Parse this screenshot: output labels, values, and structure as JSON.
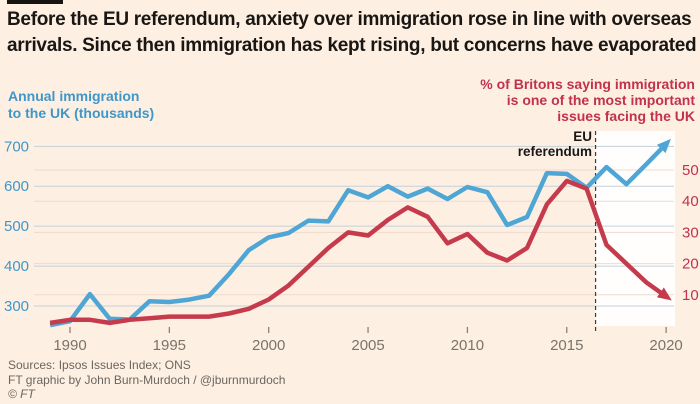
{
  "header": {
    "title_line1": "Before the EU referendum, anxiety over immigration rose in line with overseas",
    "title_line2": "arrivals. Since then immigration has kept rising, but concerns have evaporated"
  },
  "chart_data": {
    "type": "line",
    "x": [
      1989,
      1990,
      1991,
      1992,
      1993,
      1994,
      1995,
      1996,
      1997,
      1998,
      1999,
      2000,
      2001,
      2002,
      2003,
      2004,
      2005,
      2006,
      2007,
      2008,
      2009,
      2010,
      2011,
      2012,
      2013,
      2014,
      2015,
      2016,
      2017,
      2018,
      2019,
      2020
    ],
    "series": [
      {
        "name": "annual-immigration-thousands",
        "axis": "left",
        "color": "#4FA6D4",
        "values": [
          252,
          262,
          330,
          268,
          266,
          312,
          310,
          316,
          326,
          380,
          440,
          472,
          483,
          514,
          512,
          590,
          572,
          600,
          574,
          594,
          568,
          598,
          585,
          503,
          523,
          633,
          631,
          596,
          648,
          605,
          655,
          706
        ]
      },
      {
        "name": "pct-saying-immigration-important-issue",
        "axis": "right",
        "color": "#C53B4C",
        "values": [
          1,
          2,
          2,
          1,
          2,
          2.5,
          3,
          3,
          3,
          4,
          5.5,
          8.5,
          13,
          19,
          25,
          30,
          29,
          34,
          38,
          35,
          26.5,
          29.5,
          23.5,
          21,
          25,
          39,
          46.5,
          44,
          26,
          20,
          14,
          9.5
        ]
      }
    ],
    "left_axis": {
      "title": "Annual immigration\nto the UK (thousands)",
      "ticks": [
        700,
        600,
        500,
        400,
        300
      ],
      "range_bottom_value": 250,
      "grid_color": "#C3D0DA"
    },
    "right_axis": {
      "title": "% of Britons saying immigration\nis one of the most important\nissues facing the UK",
      "ticks": [
        50,
        40,
        30,
        20,
        10
      ],
      "range_bottom_value": 0,
      "grid_color": "#F0D9D0"
    },
    "x_axis": {
      "ticks": [
        1990,
        1995,
        2000,
        2005,
        2010,
        2015,
        2020
      ],
      "tick_color": "#8A827A"
    },
    "annotation": {
      "label": "EU\nreferendum",
      "year": 2016.45
    },
    "highlight_region": {
      "from_year": 2016.45,
      "to_year": 2020.45,
      "fill": "#FFFFFF",
      "opacity": 0.9
    },
    "legend_position": "none",
    "grid": "on"
  },
  "footer": {
    "sources": "Sources: Ipsos Issues Index; ONS",
    "credit": "FT graphic by John Burn-Murdoch / @jburnmurdoch",
    "copyright": "© FT"
  }
}
